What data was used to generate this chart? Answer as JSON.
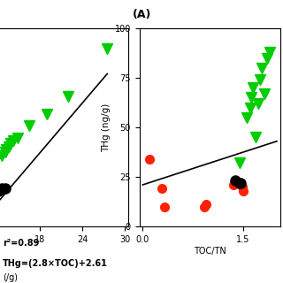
{
  "left": {
    "green_x": [
      12.5,
      13.0,
      13.2,
      13.5,
      13.8,
      14.2,
      14.8,
      16.5,
      19.0,
      22.0,
      27.5
    ],
    "green_y": [
      52,
      53,
      54,
      55,
      56,
      57,
      58,
      62,
      66,
      72,
      88
    ],
    "black_x": [
      12.0,
      12.6,
      13.0
    ],
    "black_y": [
      40,
      41,
      41
    ],
    "fit_x": [
      12.0,
      27.5
    ],
    "fit_y": [
      36.21,
      79.61
    ],
    "xlabel_partial": "(/g)",
    "xticks": [
      18,
      24,
      30
    ],
    "xlim": [
      11.5,
      30.5
    ],
    "ylim": [
      28,
      95
    ],
    "label": "(A)"
  },
  "right": {
    "green_x": [
      1.45,
      1.55,
      1.6,
      1.62,
      1.65,
      1.68,
      1.72,
      1.75,
      1.78,
      1.82,
      1.85,
      1.9
    ],
    "green_y": [
      32,
      55,
      60,
      65,
      70,
      45,
      62,
      74,
      80,
      67,
      85,
      88
    ],
    "red_x": [
      0.1,
      0.28,
      0.32,
      0.92,
      0.95,
      1.35,
      1.42,
      1.48,
      1.5
    ],
    "red_y": [
      34,
      19,
      10,
      10,
      11,
      21,
      22,
      20,
      18
    ],
    "black_x": [
      1.38,
      1.44,
      1.46
    ],
    "black_y": [
      23,
      22,
      22
    ],
    "fit_x": [
      0.0,
      2.0
    ],
    "fit_y": [
      21,
      43
    ],
    "xlabel": "TOC/TN",
    "ylabel": "THg (ng/g)",
    "xticks": [
      0.0,
      1.5
    ],
    "xlim": [
      -0.05,
      2.05
    ],
    "ylim": [
      0,
      100
    ],
    "yticks": [
      0,
      25,
      50,
      75,
      100
    ]
  },
  "annot_line1": "r²=0.89",
  "annot_line2": "THg=(2.8×TOC)+2.61",
  "green_color": "#00CC00",
  "red_color": "#FF2200",
  "black_color": "#000000",
  "marker_size": 7,
  "triangle_size": 8
}
